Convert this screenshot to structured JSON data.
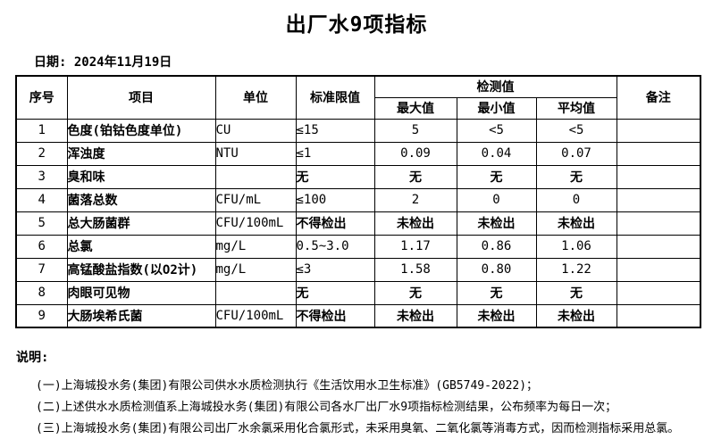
{
  "title": "出厂水9项指标",
  "date_label": "日期: 2024年11月19日",
  "table": {
    "headers": {
      "seq": "序号",
      "item": "项目",
      "unit": "单位",
      "limit": "标准限值",
      "detection": "检测值",
      "max": "最大值",
      "min": "最小值",
      "avg": "平均值",
      "remark": "备注"
    },
    "rows": [
      {
        "seq": "1",
        "item": "色度(铂钴色度单位)",
        "unit": "CU",
        "limit": "≤15",
        "max": "5",
        "min": "<5",
        "avg": "<5",
        "remark": ""
      },
      {
        "seq": "2",
        "item": "浑浊度",
        "unit": "NTU",
        "limit": "≤1",
        "max": "0.09",
        "min": "0.04",
        "avg": "0.07",
        "remark": ""
      },
      {
        "seq": "3",
        "item": "臭和味",
        "unit": "",
        "limit": "无",
        "max": "无",
        "min": "无",
        "avg": "无",
        "remark": ""
      },
      {
        "seq": "4",
        "item": "菌落总数",
        "unit": "CFU/mL",
        "limit": "≤100",
        "max": "2",
        "min": "0",
        "avg": "0",
        "remark": ""
      },
      {
        "seq": "5",
        "item": "总大肠菌群",
        "unit": "CFU/100mL",
        "limit": "不得检出",
        "max": "未检出",
        "min": "未检出",
        "avg": "未检出",
        "remark": ""
      },
      {
        "seq": "6",
        "item": "总氯",
        "unit": "mg/L",
        "limit": "0.5~3.0",
        "max": "1.17",
        "min": "0.86",
        "avg": "1.06",
        "remark": ""
      },
      {
        "seq": "7",
        "item": "高锰酸盐指数(以O2计)",
        "unit": "mg/L",
        "limit": "≤3",
        "max": "1.58",
        "min": "0.80",
        "avg": "1.22",
        "remark": ""
      },
      {
        "seq": "8",
        "item": "肉眼可见物",
        "unit": "",
        "limit": "无",
        "max": "无",
        "min": "无",
        "avg": "无",
        "remark": ""
      },
      {
        "seq": "9",
        "item": "大肠埃希氏菌",
        "unit": "CFU/100mL",
        "limit": "不得检出",
        "max": "未检出",
        "min": "未检出",
        "avg": "未检出",
        "remark": ""
      }
    ]
  },
  "notes": {
    "label": "说明:",
    "items": [
      "(一)上海城投水务(集团)有限公司供水水质检测执行《生活饮用水卫生标准》(GB5749-2022)；",
      "(二)上述供水水质检测值系上海城投水务(集团)有限公司各水厂出厂水9项指标检测结果，公布频率为每日一次；",
      "(三)上海城投水务(集团)有限公司出厂水余氯采用化合氯形式，未采用臭氧、二氧化氯等消毒方式，因而检测指标采用总氯。"
    ]
  }
}
